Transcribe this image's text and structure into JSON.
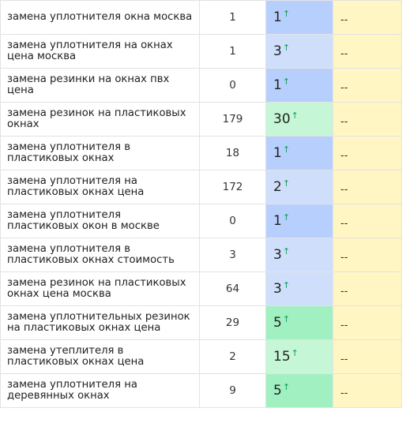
{
  "colors": {
    "pos_top": "#b7cffc",
    "pos_mid": "#cfdffb",
    "pos_green_light": "#c5f7d7",
    "pos_green": "#a1f0c2",
    "dash_bg": "#fff6c3",
    "arrow": "#14a05a"
  },
  "icons": {
    "position_change": "arrow-up-icon"
  },
  "rows": [
    {
      "phrase": "замена уплотнителя окна москва",
      "freq": "1",
      "position": "1",
      "arrow": "↑",
      "dash": "--",
      "pos_color": "#b7cffc"
    },
    {
      "phrase": "замена уплотнителя на окнах цена москва",
      "freq": "1",
      "position": "3",
      "arrow": "↑",
      "dash": "--",
      "pos_color": "#cfdffb"
    },
    {
      "phrase": "замена резинки на окнах пвх цена",
      "freq": "0",
      "position": "1",
      "arrow": "↑",
      "dash": "--",
      "pos_color": "#b7cffc"
    },
    {
      "phrase": "замена резинок на пластиковых окнах",
      "freq": "179",
      "position": "30",
      "arrow": "↑",
      "dash": "--",
      "pos_color": "#c5f7d7"
    },
    {
      "phrase": "замена уплотнителя в пластиковых окнах",
      "freq": "18",
      "position": "1",
      "arrow": "↑",
      "dash": "--",
      "pos_color": "#b7cffc"
    },
    {
      "phrase": "замена уплотнителя на пластиковых окнах цена",
      "freq": "172",
      "position": "2",
      "arrow": "↑",
      "dash": "--",
      "pos_color": "#cfdffb"
    },
    {
      "phrase": "замена уплотнителя пластиковых окон в москве",
      "freq": "0",
      "position": "1",
      "arrow": "↑",
      "dash": "--",
      "pos_color": "#b7cffc"
    },
    {
      "phrase": "замена уплотнителя в пластиковых окнах стоимость",
      "freq": "3",
      "position": "3",
      "arrow": "↑",
      "dash": "--",
      "pos_color": "#cfdffb"
    },
    {
      "phrase": "замена резинок на пластиковых окнах цена москва",
      "freq": "64",
      "position": "3",
      "arrow": "↑",
      "dash": "--",
      "pos_color": "#cfdffb"
    },
    {
      "phrase": "замена уплотнительных резинок на пластиковых окнах цена",
      "freq": "29",
      "position": "5",
      "arrow": "↑",
      "dash": "--",
      "pos_color": "#a1f0c2"
    },
    {
      "phrase": "замена утеплителя в пластиковых окнах цена",
      "freq": "2",
      "position": "15",
      "arrow": "↑",
      "dash": "--",
      "pos_color": "#c5f7d7"
    },
    {
      "phrase": "замена уплотнителя на деревянных окнах",
      "freq": "9",
      "position": "5",
      "arrow": "↑",
      "dash": "--",
      "pos_color": "#a1f0c2"
    }
  ]
}
